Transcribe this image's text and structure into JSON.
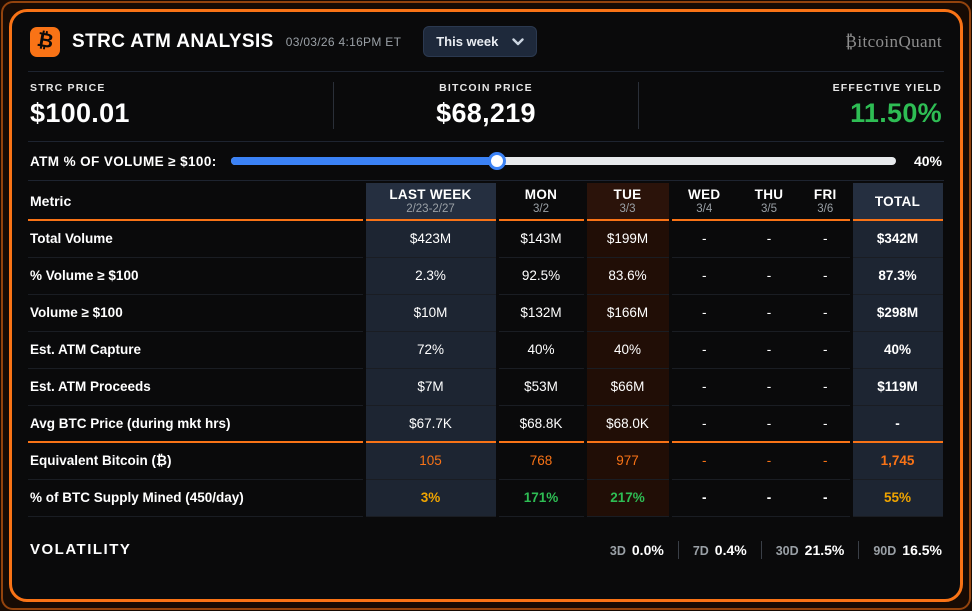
{
  "header": {
    "logo_glyph": "₿",
    "title": "STRC ATM ANALYSIS",
    "timestamp": "03/03/26 4:16PM ET",
    "period_selected": "This week",
    "brand": "₿itcoinQuant"
  },
  "stats": [
    {
      "label": "STRC PRICE",
      "value": "$100.01"
    },
    {
      "label": "BITCOIN PRICE",
      "value": "$68,219"
    },
    {
      "label": "EFFECTIVE YIELD",
      "value": "11.50%"
    }
  ],
  "slider": {
    "label": "ATM % OF VOLUME ≥ $100:",
    "value_pct": 40,
    "value_label": "40%"
  },
  "table": {
    "metric_header": "Metric",
    "columns": [
      {
        "label": "LAST WEEK",
        "sub": "2/23-2/27"
      },
      {
        "label": "MON",
        "sub": "3/2"
      },
      {
        "label": "TUE",
        "sub": "3/3"
      },
      {
        "label": "WED",
        "sub": "3/4"
      },
      {
        "label": "THU",
        "sub": "3/5"
      },
      {
        "label": "FRI",
        "sub": "3/6"
      },
      {
        "label": "TOTAL",
        "sub": ""
      }
    ],
    "rows": [
      {
        "metric": "Total Volume",
        "values": [
          "$423M",
          "$143M",
          "$199M",
          "-",
          "-",
          "-",
          "$342M"
        ]
      },
      {
        "metric": "% Volume ≥ $100",
        "values": [
          "2.3%",
          "92.5%",
          "83.6%",
          "-",
          "-",
          "-",
          "87.3%"
        ]
      },
      {
        "metric": "Volume ≥ $100",
        "values": [
          "$10M",
          "$132M",
          "$166M",
          "-",
          "-",
          "-",
          "$298M"
        ]
      },
      {
        "metric": "Est. ATM Capture",
        "values": [
          "72%",
          "40%",
          "40%",
          "-",
          "-",
          "-",
          "40%"
        ]
      },
      {
        "metric": "Est. ATM Proceeds",
        "values": [
          "$7M",
          "$53M",
          "$66M",
          "-",
          "-",
          "-",
          "$119M"
        ]
      },
      {
        "metric": "Avg BTC Price (during mkt hrs)",
        "values": [
          "$67.7K",
          "$68.8K",
          "$68.0K",
          "-",
          "-",
          "-",
          "-"
        ]
      },
      {
        "metric": "Equivalent Bitcoin (₿)",
        "values": [
          "105",
          "768",
          "977",
          "-",
          "-",
          "-",
          "1,745"
        ]
      },
      {
        "metric": "% of BTC Supply Mined (450/day)",
        "values": [
          "3%",
          "171%",
          "217%",
          "-",
          "-",
          "-",
          "55%"
        ]
      }
    ]
  },
  "volatility": {
    "label": "VOLATILITY",
    "items": [
      {
        "period": "3D",
        "value": "0.0%"
      },
      {
        "period": "7D",
        "value": "0.4%"
      },
      {
        "period": "30D",
        "value": "21.5%"
      },
      {
        "period": "90D",
        "value": "16.5%"
      }
    ]
  },
  "colors": {
    "accent_orange": "#f97316",
    "green": "#2ebd54",
    "amber": "#f0a500",
    "slider_blue": "#3b82f6"
  }
}
